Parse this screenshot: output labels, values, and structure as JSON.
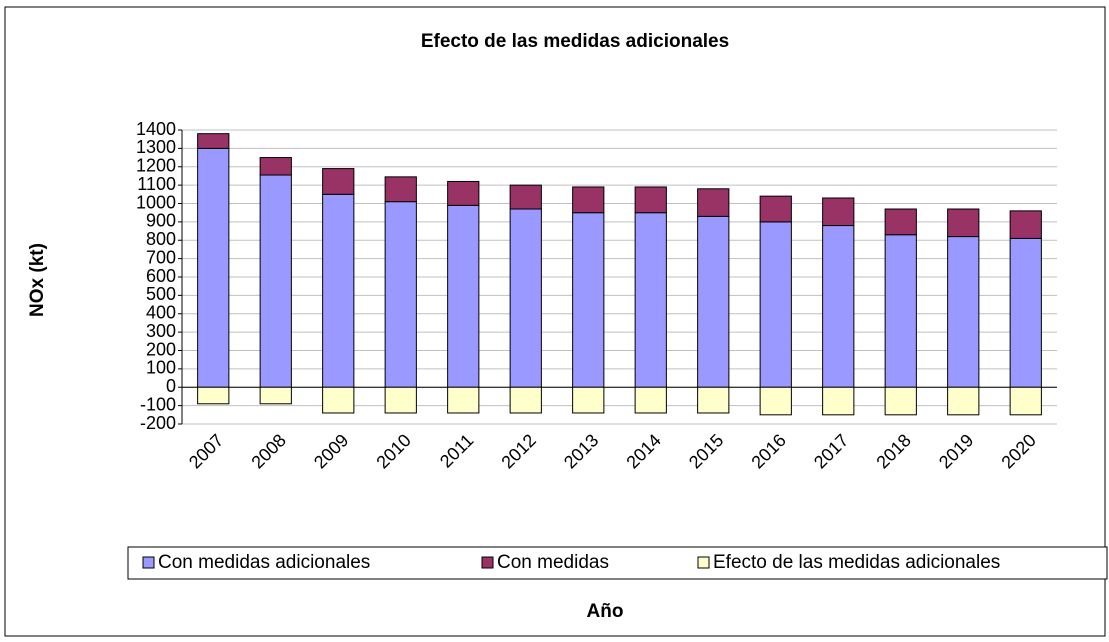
{
  "chart_data": {
    "type": "bar",
    "stacked": true,
    "title": "Efecto de las medidas adicionales",
    "x_label": "Año",
    "y_label": "NOx (kt)",
    "categories": [
      "2007",
      "2008",
      "2009",
      "2010",
      "2011",
      "2012",
      "2013",
      "2014",
      "2015",
      "2016",
      "2017",
      "2018",
      "2019",
      "2020"
    ],
    "series": [
      {
        "name": "Con medidas adicionales",
        "color": "#9999ff",
        "values": [
          1300,
          1155,
          1050,
          1010,
          990,
          970,
          950,
          950,
          930,
          900,
          880,
          830,
          820,
          810
        ]
      },
      {
        "name": "Con medidas",
        "color": "#993366",
        "values": [
          80,
          95,
          140,
          135,
          130,
          130,
          140,
          140,
          150,
          140,
          150,
          140,
          150,
          150
        ]
      },
      {
        "name": "Efecto de las medidas adicionales",
        "color": "#ffffcc",
        "values": [
          -90,
          -90,
          -140,
          -140,
          -140,
          -140,
          -140,
          -140,
          -140,
          -150,
          -150,
          -150,
          -150,
          -150
        ]
      }
    ],
    "ylim": [
      -200,
      1400
    ],
    "yticks": [
      -200,
      -100,
      0,
      100,
      200,
      300,
      400,
      500,
      600,
      700,
      800,
      900,
      1000,
      1100,
      1200,
      1300,
      1400
    ],
    "grid": true,
    "legend": "bottom"
  }
}
